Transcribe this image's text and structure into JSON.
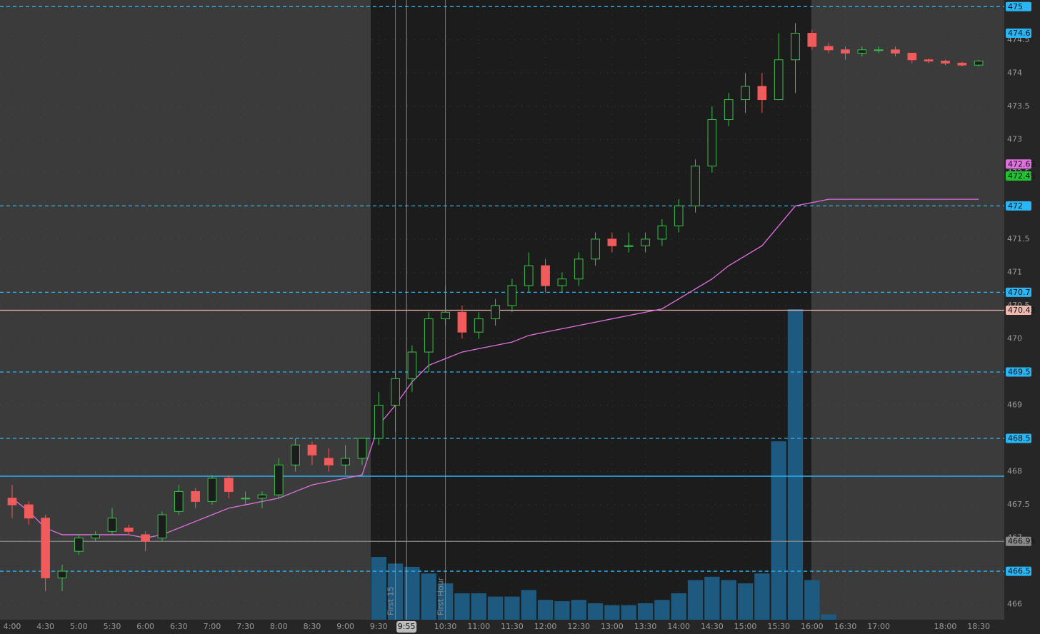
{
  "chart_data": {
    "type": "candlestick",
    "categories": [
      "4:00",
      null,
      "4:30",
      null,
      "5:00",
      null,
      "5:30",
      null,
      "6:00",
      null,
      "6:30",
      null,
      "7:00",
      null,
      "7:30",
      null,
      "8:00",
      null,
      "8:30",
      null,
      "9:00",
      null,
      "9:30",
      null,
      null,
      null,
      "10:30",
      null,
      "11:00",
      null,
      "11:30",
      null,
      "12:00",
      null,
      "12:30",
      null,
      "13:00",
      null,
      "13:30",
      null,
      "14:00",
      null,
      "14:30",
      null,
      "15:00",
      null,
      "15:30",
      null,
      "16:00",
      null,
      "16:30",
      null,
      "17:00",
      null,
      null,
      null,
      "18:00",
      null,
      "18:30"
    ],
    "open": [
      467.6,
      467.5,
      467.3,
      466.4,
      466.8,
      467.0,
      467.1,
      467.15,
      467.05,
      467.0,
      467.4,
      467.7,
      467.55,
      467.9,
      467.6,
      467.6,
      467.65,
      468.1,
      468.4,
      468.2,
      468.1,
      468.2,
      468.5,
      469.0,
      469.4,
      469.8,
      470.3,
      470.4,
      470.1,
      470.3,
      470.5,
      470.8,
      471.1,
      470.8,
      470.9,
      471.2,
      471.5,
      471.4,
      471.4,
      471.5,
      471.7,
      472.0,
      472.6,
      473.3,
      473.6,
      473.8,
      473.6,
      474.2,
      474.6,
      474.4,
      474.35,
      474.3,
      474.35,
      474.35,
      474.3,
      474.2,
      474.18,
      474.15,
      474.12
    ],
    "high": [
      467.8,
      467.55,
      467.35,
      466.6,
      467.05,
      467.1,
      467.45,
      467.2,
      467.1,
      467.4,
      467.8,
      467.75,
      467.95,
      467.95,
      467.7,
      467.7,
      468.2,
      468.5,
      468.45,
      468.35,
      468.4,
      468.5,
      469.2,
      469.5,
      469.9,
      470.4,
      470.8,
      470.5,
      470.4,
      470.6,
      470.9,
      471.3,
      471.2,
      471.0,
      471.3,
      471.6,
      471.6,
      471.6,
      471.6,
      471.8,
      472.1,
      472.7,
      473.5,
      473.7,
      474.0,
      474.0,
      474.6,
      474.75,
      474.65,
      474.45,
      474.4,
      474.4,
      474.4,
      474.4,
      474.3,
      474.22,
      474.2,
      474.17,
      474.2
    ],
    "low": [
      467.3,
      467.2,
      466.2,
      466.2,
      466.75,
      466.95,
      467.05,
      467.05,
      466.8,
      466.95,
      467.35,
      467.45,
      467.5,
      467.6,
      467.5,
      467.45,
      467.6,
      468.0,
      468.1,
      468.0,
      467.95,
      468.1,
      468.4,
      468.6,
      469.2,
      469.5,
      470.2,
      470.0,
      470.0,
      470.2,
      470.4,
      470.7,
      470.7,
      470.7,
      470.8,
      471.1,
      471.3,
      471.3,
      471.3,
      471.4,
      471.6,
      471.9,
      472.5,
      473.2,
      473.4,
      473.4,
      473.6,
      473.7,
      474.35,
      474.3,
      474.2,
      474.25,
      474.3,
      474.25,
      474.15,
      474.15,
      474.12,
      474.1,
      474.1
    ],
    "close": [
      467.5,
      467.3,
      466.4,
      466.5,
      467.0,
      467.05,
      467.3,
      467.1,
      466.95,
      467.35,
      467.7,
      467.55,
      467.9,
      467.7,
      467.6,
      467.65,
      468.1,
      468.4,
      468.25,
      468.1,
      468.2,
      468.5,
      469.0,
      469.4,
      469.8,
      470.3,
      470.4,
      470.1,
      470.3,
      470.5,
      470.8,
      471.1,
      470.8,
      470.9,
      471.2,
      471.5,
      471.4,
      471.4,
      471.5,
      471.7,
      472.0,
      472.6,
      473.3,
      473.6,
      473.8,
      473.6,
      474.2,
      474.6,
      474.4,
      474.35,
      474.3,
      474.35,
      474.35,
      474.3,
      474.2,
      474.18,
      474.15,
      474.12,
      474.18
    ],
    "up_color": "#3cbf4c",
    "down_color": "#f05b5b",
    "vwap": {
      "color": "#e070e0",
      "values": [
        467.6,
        467.4,
        467.15,
        467.05,
        467.05,
        467.05,
        467.05,
        467.05,
        467.0,
        467.05,
        467.15,
        467.25,
        467.35,
        467.45,
        467.5,
        467.55,
        467.6,
        467.7,
        467.8,
        467.85,
        467.9,
        467.95,
        468.7,
        469.0,
        469.35,
        469.6,
        469.7,
        469.8,
        469.85,
        469.9,
        469.95,
        470.05,
        470.1,
        470.15,
        470.2,
        470.25,
        470.3,
        470.35,
        470.4,
        470.45,
        470.6,
        470.75,
        470.9,
        471.1,
        471.25,
        471.4,
        471.7,
        472.0,
        472.05,
        472.1,
        472.1,
        472.1,
        472.1,
        472.1,
        472.1,
        472.1,
        472.1,
        472.1,
        472.1
      ]
    },
    "volume": {
      "color": "#1e5a80",
      "values": [
        null,
        null,
        null,
        null,
        null,
        null,
        null,
        null,
        null,
        null,
        null,
        null,
        null,
        null,
        null,
        null,
        null,
        null,
        null,
        null,
        null,
        null,
        95,
        85,
        80,
        70,
        55,
        40,
        40,
        35,
        35,
        45,
        30,
        28,
        30,
        25,
        22,
        22,
        25,
        30,
        40,
        60,
        65,
        60,
        55,
        70,
        270,
        470,
        60,
        8,
        null,
        null,
        null,
        null,
        null,
        null,
        null,
        null,
        null
      ]
    },
    "ylim": [
      465.77,
      475.1
    ],
    "yticks": [
      466,
      466.5,
      467,
      467.5,
      468,
      468.5,
      469,
      469.5,
      470,
      470.5,
      471,
      471.5,
      472,
      472.5,
      473,
      473.5,
      474,
      474.5
    ],
    "grid": true,
    "levels": [
      {
        "value": 475,
        "color": "#29b6f6",
        "style": "dashed"
      },
      {
        "value": 472,
        "color": "#29b6f6",
        "style": "dashed"
      },
      {
        "value": 470.7,
        "color": "#29b6f6",
        "style": "dashed"
      },
      {
        "value": 469.5,
        "color": "#29b6f6",
        "style": "dashed"
      },
      {
        "value": 468.5,
        "color": "#29b6f6",
        "style": "dashed"
      },
      {
        "value": 466.5,
        "color": "#29b6f6",
        "style": "dashed"
      },
      {
        "value": 466.95,
        "color": "#8a8a8a",
        "style": "solid"
      },
      {
        "value": 470.43,
        "color": "#f2b8b0",
        "style": "solid"
      }
    ],
    "baseline": {
      "value": 467.93,
      "color": "#29b6f6"
    },
    "price_markers": [
      {
        "value": 474.6,
        "color": "#29b6f6"
      },
      {
        "value": 472.63,
        "color": "#e070e0"
      },
      {
        "value": 472.45,
        "color": "#21c232"
      }
    ],
    "vlines": [
      {
        "x": "9:45",
        "label": "First 15"
      },
      {
        "x": "10:30",
        "label": "First Hour"
      }
    ],
    "cursor": "9:55"
  }
}
